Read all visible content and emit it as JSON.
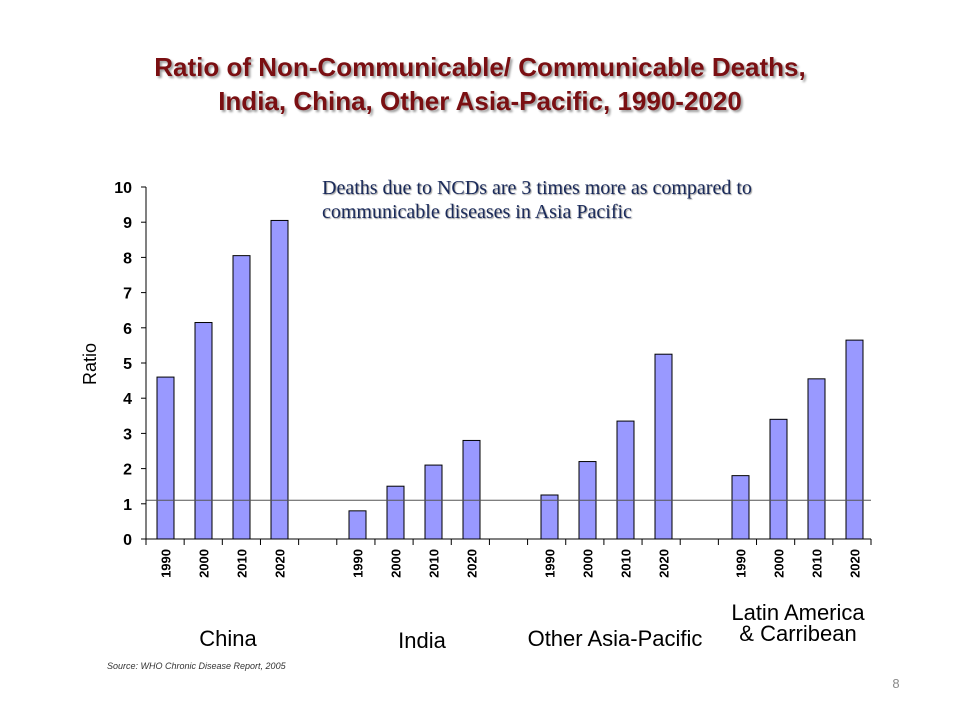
{
  "slide": {
    "title_line1": "Ratio of Non-Communicable/ Communicable Deaths,",
    "title_line2": "India, China, Other Asia-Pacific, 1990-2020",
    "annotation_line1": "Deaths due to NCDs are 3 times more as compared to",
    "annotation_line2": "communicable diseases in Asia Pacific",
    "source": "Source: WHO Chronic Disease Report, 2005",
    "page_number": "8"
  },
  "chart_data": {
    "type": "bar",
    "title": "Ratio of Non-Communicable/ Communicable Deaths, India, China, Other Asia-Pacific, 1990-2020",
    "ylabel": "Ratio",
    "xlabel": "",
    "ylim": [
      0,
      10
    ],
    "yticks": [
      0,
      1,
      2,
      3,
      4,
      5,
      6,
      7,
      8,
      9,
      10
    ],
    "grid": false,
    "reference_line": 1.1,
    "bar_color": "#9999ff",
    "groups": [
      {
        "name": "China",
        "categories": [
          "1990",
          "2000",
          "2010",
          "2020"
        ],
        "values": [
          4.6,
          6.15,
          8.05,
          9.05
        ]
      },
      {
        "name": "India",
        "categories": [
          "1990",
          "2000",
          "2010",
          "2020"
        ],
        "values": [
          0.8,
          1.5,
          2.1,
          2.8
        ]
      },
      {
        "name": "Other Asia-Pacific",
        "categories": [
          "1990",
          "2000",
          "2010",
          "2020"
        ],
        "values": [
          1.25,
          2.2,
          3.35,
          5.25
        ]
      },
      {
        "name": "Latin America & Carribean",
        "name_line1": "Latin America",
        "name_line2": "& Carribean",
        "categories": [
          "1990",
          "2000",
          "2010",
          "2020"
        ],
        "values": [
          1.8,
          3.4,
          4.55,
          5.65
        ]
      }
    ]
  }
}
